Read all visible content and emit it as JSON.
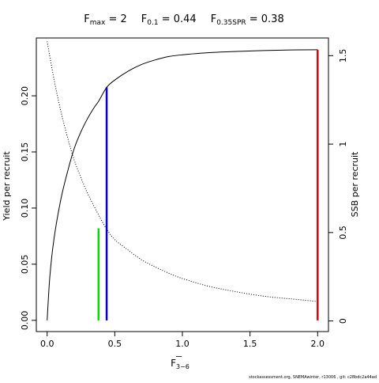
{
  "chart_data": {
    "type": "line",
    "title_parts": {
      "fmax_label": "F",
      "fmax_sub": "max",
      "fmax_value": " = 2",
      "f01_label": "F",
      "f01_sub": "0.1",
      "f01_value": " = 0.44",
      "f35_label": "F",
      "f35_sub": "0.35SPR",
      "f35_value": " = 0.38"
    },
    "xlabel": "F",
    "xlabel_sub": "3−6",
    "ylabel_left": "Yield per recruit",
    "ylabel_right": "SSB per recruit",
    "xlim": [
      -0.08,
      2.08
    ],
    "ylim_left": [
      -0.01,
      0.2515
    ],
    "ylim_right": [
      -0.06,
      1.6
    ],
    "x_ticks": [
      0,
      0.5,
      1,
      1.5,
      2
    ],
    "x_tick_labels": [
      "0.0",
      "0.5",
      "1.0",
      "1.5",
      "2.0"
    ],
    "y_left_ticks": [
      0,
      0.05,
      0.1,
      0.15,
      0.2
    ],
    "y_left_tick_labels": [
      "0.00",
      "0.05",
      "0.10",
      "0.15",
      "0.20"
    ],
    "y_right_ticks": [
      0,
      0.5,
      1,
      1.5
    ],
    "y_right_tick_labels": [
      "0",
      "0.5",
      "1",
      "1.5"
    ],
    "series": [
      {
        "axis": "left",
        "style": "solid",
        "color": "#000000",
        "x": [
          0,
          0.02,
          0.05,
          0.1,
          0.15,
          0.2,
          0.25,
          0.3,
          0.35,
          0.38,
          0.44,
          0.5,
          0.6,
          0.7,
          0.8,
          0.9,
          1.0,
          1.2,
          1.4,
          1.6,
          1.8,
          2.0
        ],
        "y": [
          0,
          0.039,
          0.072,
          0.107,
          0.132,
          0.153,
          0.168,
          0.18,
          0.19,
          0.195,
          0.2075,
          0.214,
          0.222,
          0.228,
          0.232,
          0.235,
          0.2365,
          0.2385,
          0.2395,
          0.2403,
          0.2408,
          0.241
        ]
      },
      {
        "axis": "right",
        "style": "dotted",
        "color": "#000000",
        "x": [
          0,
          0.05,
          0.1,
          0.15,
          0.2,
          0.25,
          0.3,
          0.38,
          0.44,
          0.5,
          0.6,
          0.7,
          0.8,
          0.9,
          1.0,
          1.2,
          1.4,
          1.6,
          1.8,
          2.0
        ],
        "y": [
          1.58,
          1.37,
          1.19,
          1.04,
          0.91,
          0.81,
          0.72,
          0.6,
          0.52,
          0.46,
          0.4,
          0.345,
          0.305,
          0.27,
          0.24,
          0.195,
          0.165,
          0.14,
          0.125,
          0.11
        ]
      }
    ],
    "reference_lines": [
      {
        "name": "F0.35SPR",
        "x": 0.38,
        "y": 0.082,
        "color": "#00dd00"
      },
      {
        "name": "F0.1",
        "x": 0.44,
        "y": 0.2075,
        "color": "#0000cc"
      },
      {
        "name": "Fmax",
        "x": 2.0,
        "y": 0.241,
        "color": "#dd0000"
      }
    ],
    "footer": "stockassessment.org, SNEMAwinter, r13006 ,  git: c28bdc2a44ad"
  }
}
